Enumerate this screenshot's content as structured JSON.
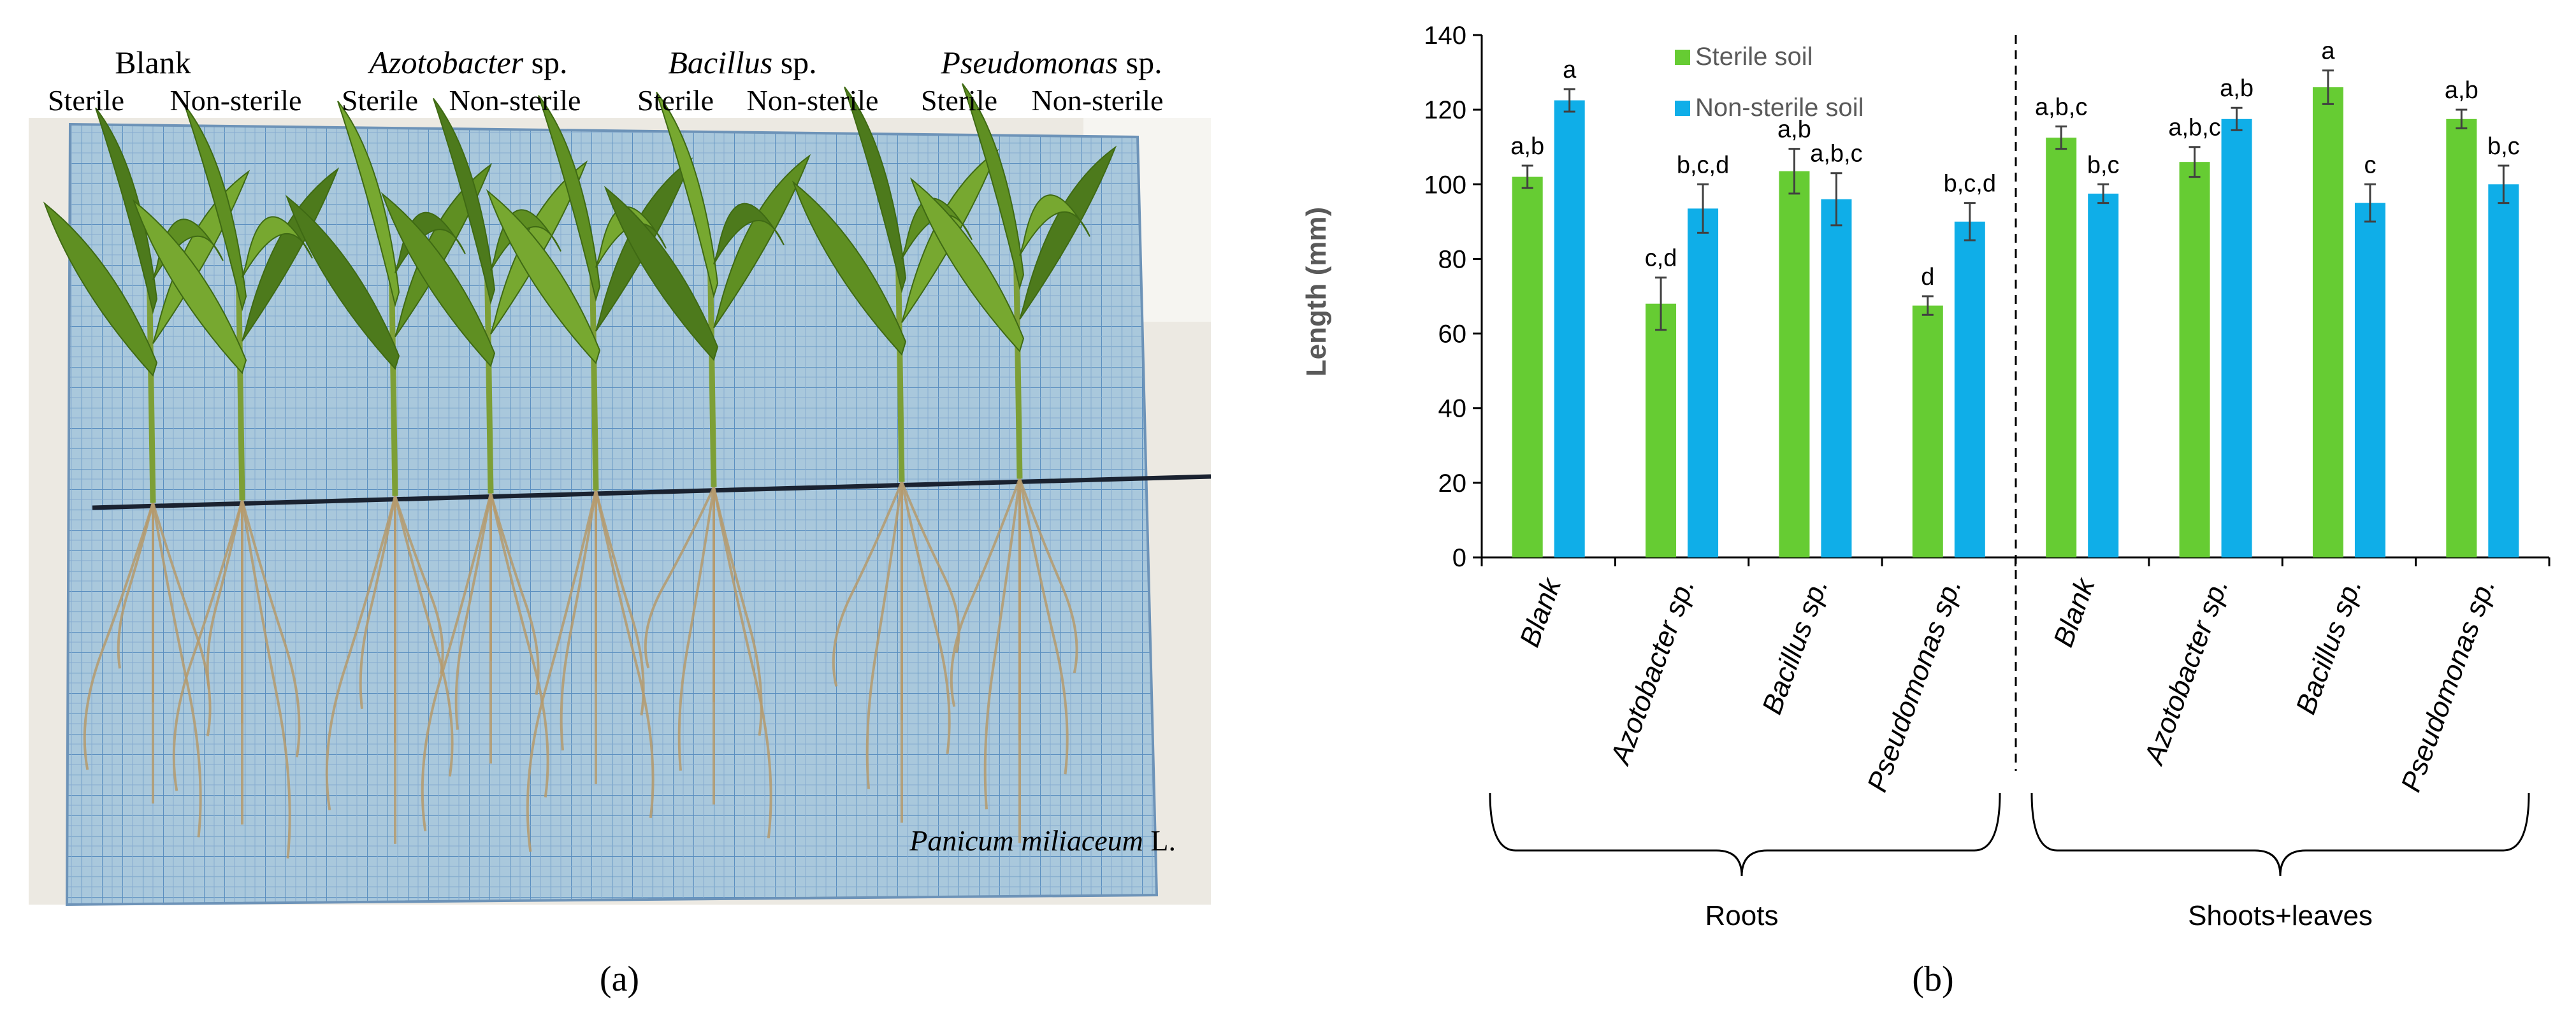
{
  "panel_a": {
    "label": "(a)",
    "groups": [
      {
        "name": "Blank",
        "italic": false
      },
      {
        "name": "Azotobacter",
        "suffix": " sp.",
        "italic": true
      },
      {
        "name": "Bacillus",
        "suffix": " sp.",
        "italic": true
      },
      {
        "name": "Pseudomonas",
        "suffix": " sp.",
        "italic": true
      }
    ],
    "sterile_label": "Sterile",
    "nonsterile_label": "Non-sterile",
    "species_label": "Panicum miliaceum",
    "species_suffix": " L.",
    "colors": {
      "grid_bg": "#a9c8dc",
      "grid_line": "#5b8fc0",
      "plant": "#6f9a2a"
    }
  },
  "panel_b": {
    "label": "(b)",
    "group_labels": {
      "left": "Roots",
      "right": "Shoots+leaves"
    }
  },
  "chart_data": {
    "type": "bar",
    "title": "",
    "xlabel": "",
    "ylabel": "Length  (mm)",
    "ylim": [
      0,
      140
    ],
    "yticks": [
      0,
      20,
      40,
      60,
      80,
      100,
      120,
      140
    ],
    "categories": [
      "Blank",
      "Azotobacter sp.",
      "Bacillus sp.",
      "Pseudomonas sp.",
      "Blank",
      "Azotobacter sp.",
      "Bacillus sp.",
      "Pseudomonas sp."
    ],
    "legend_position": "top-left",
    "series": [
      {
        "name": "Sterile soil",
        "color": "#66cc33",
        "values": [
          102,
          68,
          103.5,
          67.5,
          112.5,
          106,
          126,
          117.5
        ],
        "errors": [
          3,
          7,
          6,
          2.5,
          3,
          4,
          4.5,
          2.5
        ],
        "letters": [
          "a,b",
          "c,d",
          "a,b",
          "d",
          "a,b,c",
          "a,b,c",
          "a",
          "a,b"
        ]
      },
      {
        "name": "Non-sterile soil",
        "color": "#0faee8",
        "values": [
          122.5,
          93.5,
          96,
          90,
          97.5,
          117.5,
          95,
          100
        ],
        "errors": [
          3,
          6.5,
          7,
          5,
          2.5,
          3,
          5,
          5
        ],
        "letters": [
          "a",
          "b,c,d",
          "a,b,c",
          "b,c,d",
          "b,c",
          "a,b",
          "c",
          "b,c"
        ]
      }
    ]
  }
}
